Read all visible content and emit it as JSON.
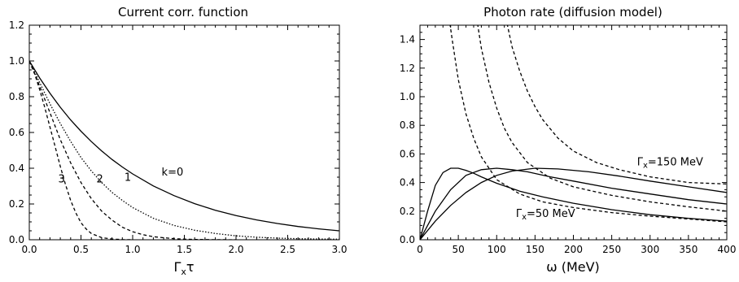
{
  "chart_data": [
    {
      "type": "line",
      "title": "Current corr. function",
      "xlabel": "Γxτ",
      "ylabel": "",
      "xlim": [
        0,
        3
      ],
      "ylim": [
        0,
        1.2
      ],
      "xticks": [
        "0.0",
        "0.5",
        "1.0",
        "1.5",
        "2.0",
        "2.5",
        "3.0"
      ],
      "yticks": [
        "0.0",
        "0.2",
        "0.4",
        "0.6",
        "0.8",
        "1.0",
        "1.2"
      ],
      "series": [
        {
          "name": "k=0",
          "style": "solid",
          "x": [
            0,
            0.1,
            0.2,
            0.3,
            0.4,
            0.5,
            0.6,
            0.7,
            0.8,
            0.9,
            1.0,
            1.2,
            1.4,
            1.6,
            1.8,
            2.0,
            2.2,
            2.4,
            2.6,
            2.8,
            3.0
          ],
          "y": [
            1.0,
            0.905,
            0.819,
            0.741,
            0.67,
            0.607,
            0.549,
            0.497,
            0.449,
            0.407,
            0.368,
            0.301,
            0.247,
            0.202,
            0.165,
            0.135,
            0.111,
            0.091,
            0.074,
            0.061,
            0.05
          ]
        },
        {
          "name": "1",
          "style": "dotted",
          "x": [
            0,
            0.1,
            0.2,
            0.3,
            0.4,
            0.5,
            0.6,
            0.7,
            0.8,
            0.9,
            1.0,
            1.2,
            1.4,
            1.6,
            1.8,
            2.0,
            2.2,
            2.4,
            2.6,
            2.8,
            3.0
          ],
          "y": [
            1.0,
            0.88,
            0.76,
            0.65,
            0.55,
            0.46,
            0.385,
            0.32,
            0.265,
            0.22,
            0.18,
            0.12,
            0.08,
            0.053,
            0.035,
            0.022,
            0.014,
            0.009,
            0.006,
            0.004,
            0.003
          ]
        },
        {
          "name": "2",
          "style": "dashed",
          "x": [
            0,
            0.1,
            0.2,
            0.3,
            0.4,
            0.5,
            0.6,
            0.7,
            0.8,
            0.9,
            1.0,
            1.1,
            1.2,
            1.4,
            1.6,
            1.8,
            2.0
          ],
          "y": [
            1.0,
            0.86,
            0.71,
            0.56,
            0.43,
            0.32,
            0.23,
            0.16,
            0.11,
            0.07,
            0.045,
            0.028,
            0.017,
            0.006,
            0.002,
            0.0005,
            0
          ]
        },
        {
          "name": "3",
          "style": "dashed",
          "x": [
            0,
            0.05,
            0.1,
            0.15,
            0.2,
            0.25,
            0.3,
            0.35,
            0.4,
            0.45,
            0.5,
            0.55,
            0.6,
            0.7,
            0.8,
            0.9,
            1.0
          ],
          "y": [
            1.0,
            0.93,
            0.84,
            0.74,
            0.63,
            0.52,
            0.41,
            0.31,
            0.22,
            0.15,
            0.095,
            0.06,
            0.035,
            0.012,
            0.004,
            0.001,
            0
          ]
        }
      ],
      "annotations": [
        {
          "text": "k=0",
          "x": 1.28,
          "y": 0.36
        },
        {
          "text": "1",
          "x": 0.92,
          "y": 0.33
        },
        {
          "text": "2",
          "x": 0.65,
          "y": 0.32
        },
        {
          "text": "3",
          "x": 0.28,
          "y": 0.32
        }
      ]
    },
    {
      "type": "line",
      "title": "Photon rate (diffusion model)",
      "xlabel": "ω (MeV)",
      "ylabel": "",
      "xlim": [
        0,
        400
      ],
      "ylim": [
        0,
        1.5
      ],
      "xticks": [
        "0",
        "50",
        "100",
        "150",
        "200",
        "250",
        "300",
        "350",
        "400"
      ],
      "yticks": [
        "0.0",
        "0.2",
        "0.4",
        "0.6",
        "0.8",
        "1.0",
        "1.2",
        "1.4"
      ],
      "series": [
        {
          "style": "solid",
          "x": [
            0,
            10,
            20,
            30,
            40,
            50,
            60,
            70,
            80,
            100,
            130,
            160,
            200,
            250,
            300,
            350,
            400
          ],
          "y": [
            0,
            0.2,
            0.38,
            0.47,
            0.5,
            0.5,
            0.485,
            0.465,
            0.44,
            0.395,
            0.34,
            0.3,
            0.255,
            0.21,
            0.175,
            0.15,
            0.13
          ]
        },
        {
          "style": "solid",
          "x": [
            0,
            10,
            20,
            40,
            60,
            80,
            100,
            120,
            140,
            170,
            200,
            250,
            300,
            350,
            400
          ],
          "y": [
            0,
            0.1,
            0.2,
            0.35,
            0.45,
            0.49,
            0.5,
            0.49,
            0.475,
            0.44,
            0.41,
            0.36,
            0.32,
            0.28,
            0.25
          ]
        },
        {
          "style": "solid",
          "x": [
            0,
            20,
            40,
            60,
            80,
            100,
            120,
            150,
            180,
            220,
            260,
            300,
            350,
            400
          ],
          "y": [
            0,
            0.13,
            0.24,
            0.33,
            0.4,
            0.45,
            0.48,
            0.5,
            0.495,
            0.475,
            0.445,
            0.41,
            0.37,
            0.33
          ]
        },
        {
          "style": "dashed",
          "x": [
            38,
            42,
            50,
            60,
            70,
            80,
            100,
            130,
            160,
            200,
            250,
            300,
            350,
            400
          ],
          "y": [
            1.55,
            1.4,
            1.12,
            0.88,
            0.71,
            0.58,
            0.42,
            0.32,
            0.265,
            0.225,
            0.19,
            0.165,
            0.145,
            0.125
          ]
        },
        {
          "style": "dashed",
          "x": [
            74,
            80,
            90,
            100,
            110,
            120,
            140,
            170,
            200,
            250,
            300,
            350,
            400
          ],
          "y": [
            1.55,
            1.34,
            1.1,
            0.92,
            0.78,
            0.68,
            0.54,
            0.43,
            0.37,
            0.31,
            0.265,
            0.23,
            0.2
          ]
        },
        {
          "style": "dashed",
          "x": [
            112,
            120,
            130,
            140,
            150,
            160,
            180,
            200,
            230,
            260,
            300,
            350,
            400
          ],
          "y": [
            1.55,
            1.35,
            1.18,
            1.04,
            0.93,
            0.84,
            0.71,
            0.62,
            0.54,
            0.49,
            0.44,
            0.4,
            0.39
          ]
        }
      ],
      "annotations": [
        {
          "text": "Γx=150 MeV",
          "x": 283,
          "y": 0.52
        },
        {
          "text": "Γx=50 MeV",
          "x": 125,
          "y": 0.16
        }
      ]
    }
  ]
}
